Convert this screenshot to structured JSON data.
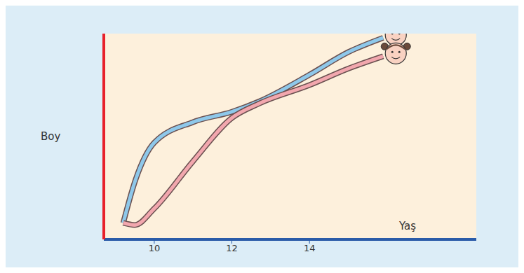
{
  "chart_data": {
    "type": "line",
    "x_label": "Yaş",
    "y_label": "Boy",
    "x": [
      9.2,
      9.5,
      10,
      11,
      12,
      12.7,
      14,
      15,
      15.9
    ],
    "series": [
      {
        "color": "#8ec8ea",
        "values": [
          8,
          28,
          47,
          57,
          62,
          67,
          80,
          91,
          98
        ]
      },
      {
        "color": "#f2a7ae",
        "values": [
          8,
          7,
          15,
          38,
          59,
          66,
          75,
          83,
          89
        ]
      }
    ],
    "xlim": [
      8.7,
      18.3
    ],
    "xticks": [
      10,
      12,
      14
    ],
    "ylim": [
      0,
      100
    ],
    "tick_labels": "x",
    "grid": false
  }
}
